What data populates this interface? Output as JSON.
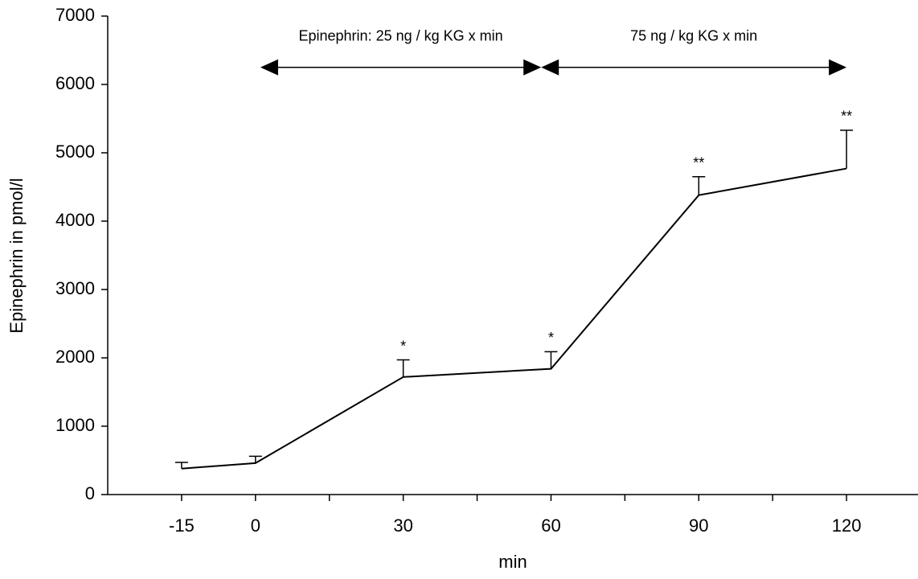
{
  "chart_data": {
    "type": "line",
    "x_label": "min",
    "y_label": "Epinephrin in pmol/l",
    "x": [
      -15,
      0,
      30,
      60,
      90,
      120
    ],
    "series": [
      {
        "color": "#000000",
        "values": [
          380,
          460,
          1720,
          1840,
          4380,
          4770
        ],
        "errors": [
          90,
          100,
          250,
          250,
          270,
          560
        ]
      }
    ],
    "significance": [
      null,
      null,
      "*",
      "*",
      "**",
      "**"
    ],
    "arrows": [
      {
        "label": "Epinephrin: 25 ng / kg KG x min",
        "x": [
          1,
          58
        ],
        "y": 6250
      },
      {
        "label": "75 ng / kg KG x min",
        "x": [
          58,
          120
        ],
        "y": 6250
      }
    ],
    "xlim": [
      -30,
      135
    ],
    "xticks": [
      -15,
      0,
      30,
      60,
      90,
      120
    ],
    "xminor_ticks": [
      15,
      45,
      75,
      105
    ],
    "ylim": [
      0,
      7000
    ],
    "yticks": [
      0,
      1000,
      2000,
      3000,
      4000,
      5000,
      6000,
      7000
    ],
    "grid": false
  }
}
